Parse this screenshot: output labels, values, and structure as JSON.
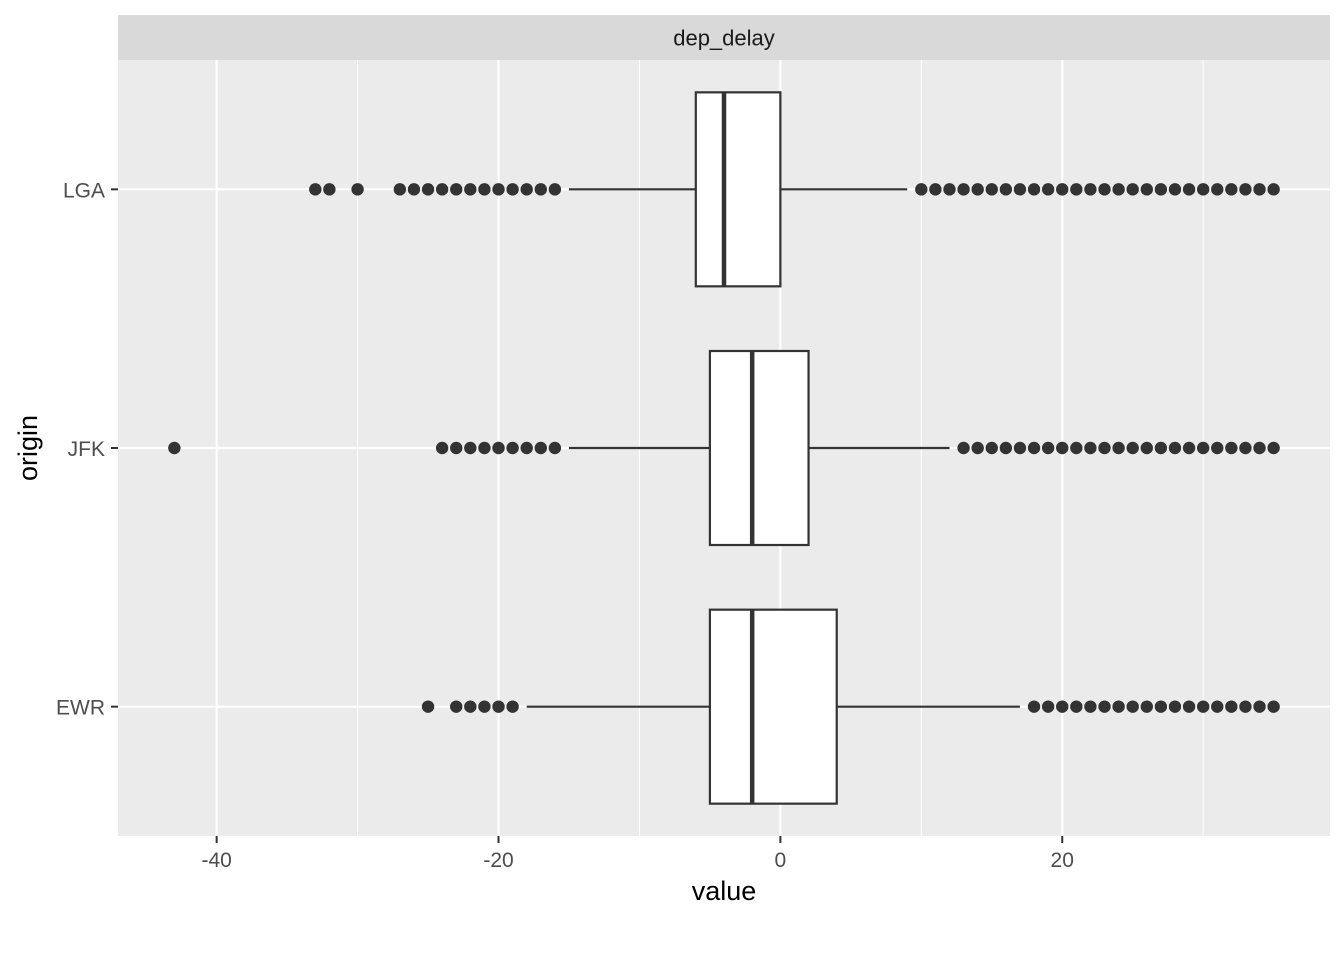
{
  "chart_data": {
    "type": "boxplot",
    "orientation": "horizontal",
    "facet_label": "dep_delay",
    "xlabel": "value",
    "ylabel": "origin",
    "xlim": [
      -47,
      39
    ],
    "x_ticks": [
      -40,
      -20,
      0,
      20
    ],
    "x_tick_labels": [
      "-40",
      "-20",
      "0",
      "20"
    ],
    "x_minor_ticks": [
      -30,
      -10,
      10,
      30
    ],
    "categories": [
      "EWR",
      "JFK",
      "LGA"
    ],
    "boxes": [
      {
        "category": "EWR",
        "q1": -5,
        "median": -2,
        "q3": 4,
        "whisker_low": -18,
        "whisker_high": 17,
        "outliers": [
          -25,
          -23,
          -22,
          -21,
          -20,
          -19,
          18,
          19,
          20,
          21,
          22,
          23,
          24,
          25,
          26,
          27,
          28,
          29,
          30,
          31,
          32,
          33,
          34,
          35
        ]
      },
      {
        "category": "JFK",
        "q1": -5,
        "median": -2,
        "q3": 2,
        "whisker_low": -15,
        "whisker_high": 12,
        "outliers": [
          -43,
          -24,
          -23,
          -22,
          -21,
          -20,
          -19,
          -18,
          -17,
          -16,
          13,
          14,
          15,
          16,
          17,
          18,
          19,
          20,
          21,
          22,
          23,
          24,
          25,
          26,
          27,
          28,
          29,
          30,
          31,
          32,
          33,
          34,
          35
        ]
      },
      {
        "category": "LGA",
        "q1": -6,
        "median": -4,
        "q3": 0,
        "whisker_low": -15,
        "whisker_high": 9,
        "outliers": [
          -33,
          -32,
          -30,
          -27,
          -26,
          -25,
          -24,
          -23,
          -22,
          -21,
          -20,
          -19,
          -18,
          -17,
          -16,
          10,
          11,
          12,
          13,
          14,
          15,
          16,
          17,
          18,
          19,
          20,
          21,
          22,
          23,
          24,
          25,
          26,
          27,
          28,
          29,
          30,
          31,
          32,
          33,
          34,
          35
        ]
      }
    ],
    "colors": {
      "panel_background": "#ebebeb",
      "strip_background": "#d9d9d9",
      "grid": "#ffffff",
      "box_fill": "#ffffff",
      "box_line": "#333333",
      "outlier": "#333333"
    },
    "grid": true,
    "legend": "none"
  }
}
